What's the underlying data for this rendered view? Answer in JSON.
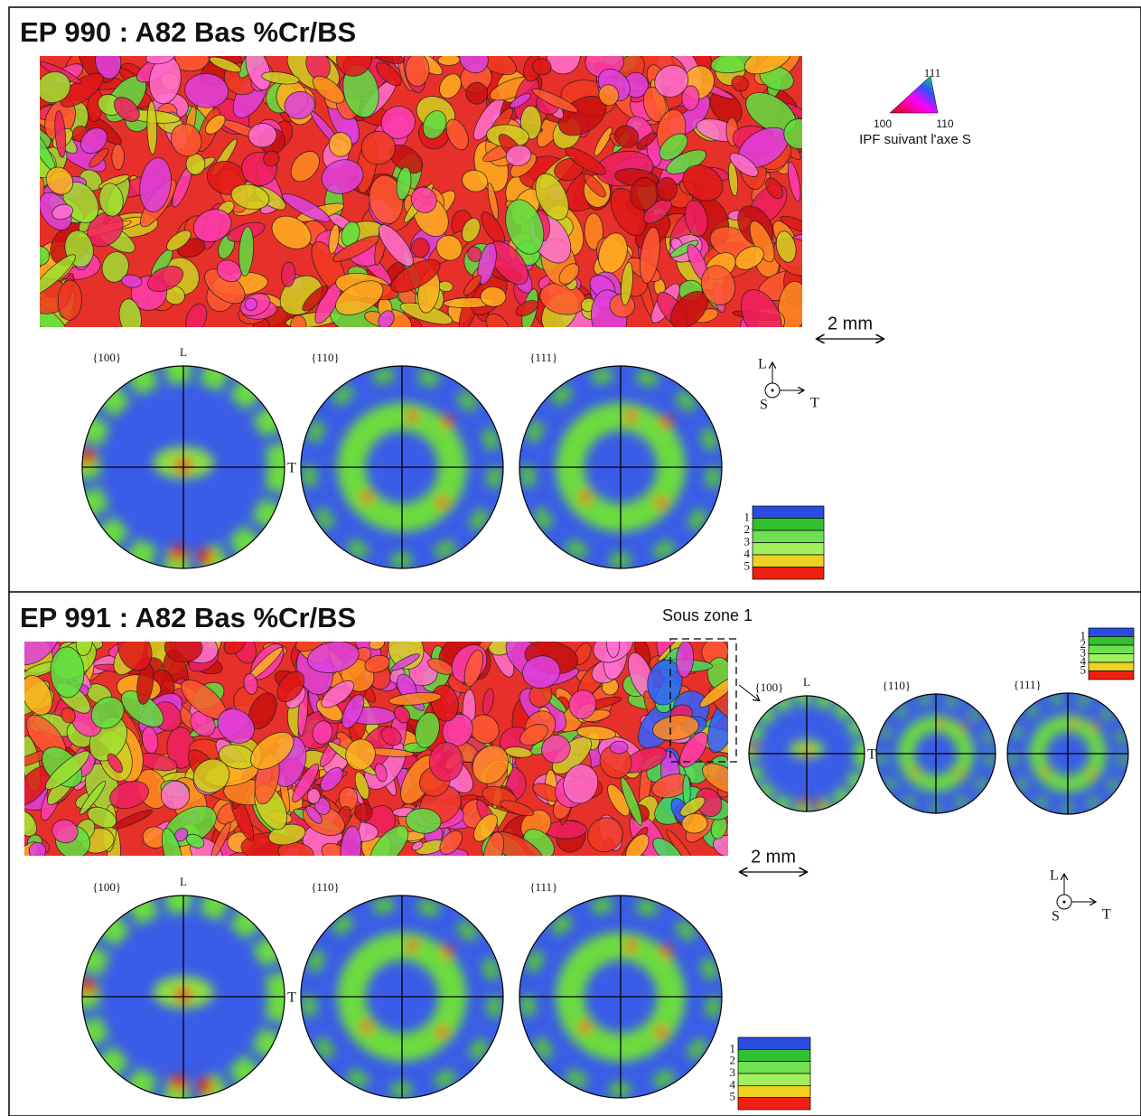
{
  "panels": [
    {
      "title": "EP 990 : A82 Bas %Cr/BS",
      "ipf_legend": {
        "top": "111",
        "left": "100",
        "right": "110",
        "caption": "IPF suivant l'axe S"
      },
      "scale_bar": "2 mm",
      "pole_figures": [
        {
          "label": "{100}"
        },
        {
          "label": "{110}"
        },
        {
          "label": "{111}"
        }
      ],
      "pole_axes": {
        "top": "L",
        "right": "T"
      },
      "triad": {
        "up": "L",
        "center": "S",
        "right": "T"
      },
      "levels": [
        1,
        2,
        3,
        4,
        5
      ]
    },
    {
      "title": "EP 991 : A82 Bas %Cr/BS",
      "subzone": {
        "label": "Sous zone 1",
        "pole_figures": [
          {
            "label": "{100}"
          },
          {
            "label": "{110}"
          },
          {
            "label": "{111}"
          }
        ],
        "pole_axes": {
          "top": "L",
          "right": "T"
        },
        "levels": [
          1,
          2,
          3,
          4,
          5
        ]
      },
      "scale_bar": "2 mm",
      "pole_figures": [
        {
          "label": "{100}"
        },
        {
          "label": "{110}"
        },
        {
          "label": "{111}"
        }
      ],
      "pole_axes": {
        "top": "L",
        "right": "T"
      },
      "triad": {
        "up": "L",
        "center": "S",
        "right": "T"
      },
      "levels": [
        1,
        2,
        3,
        4,
        5
      ]
    }
  ]
}
